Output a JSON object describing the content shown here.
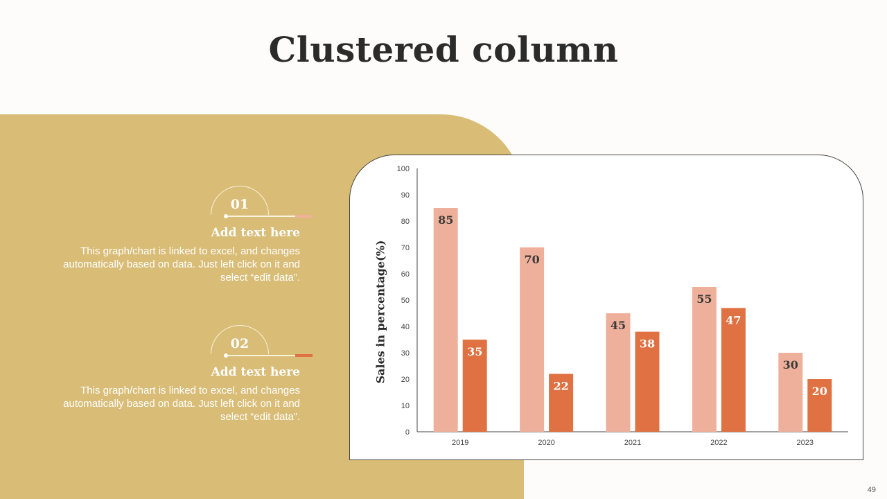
{
  "slide": {
    "title": "Clustered column",
    "page_number": "49"
  },
  "items": [
    {
      "number": "01",
      "heading": "Add text here",
      "body": "This graph/chart is linked to excel, and changes automatically based on data. Just left click on it and select “edit data”.",
      "accent_color": "#f0b09a"
    },
    {
      "number": "02",
      "heading": "Add text here",
      "body": "This graph/chart is linked to excel, and changes automatically based on data. Just left click on it and select “edit data”.",
      "accent_color": "#e07142"
    }
  ],
  "chart_data": {
    "type": "bar",
    "title": "",
    "xlabel": "",
    "ylabel": "Sales in percentage(%)",
    "ylim": [
      0,
      100
    ],
    "yticks": [
      0,
      10,
      20,
      30,
      40,
      50,
      60,
      70,
      80,
      90,
      100
    ],
    "categories": [
      "2019",
      "2020",
      "2021",
      "2022",
      "2023"
    ],
    "series": [
      {
        "values": [
          85,
          70,
          45,
          55,
          30
        ],
        "color": "#efb09b"
      },
      {
        "values": [
          35,
          22,
          38,
          47,
          20
        ],
        "color": "#e07142"
      }
    ],
    "data_labels": true,
    "grid": false,
    "legend": "none"
  }
}
